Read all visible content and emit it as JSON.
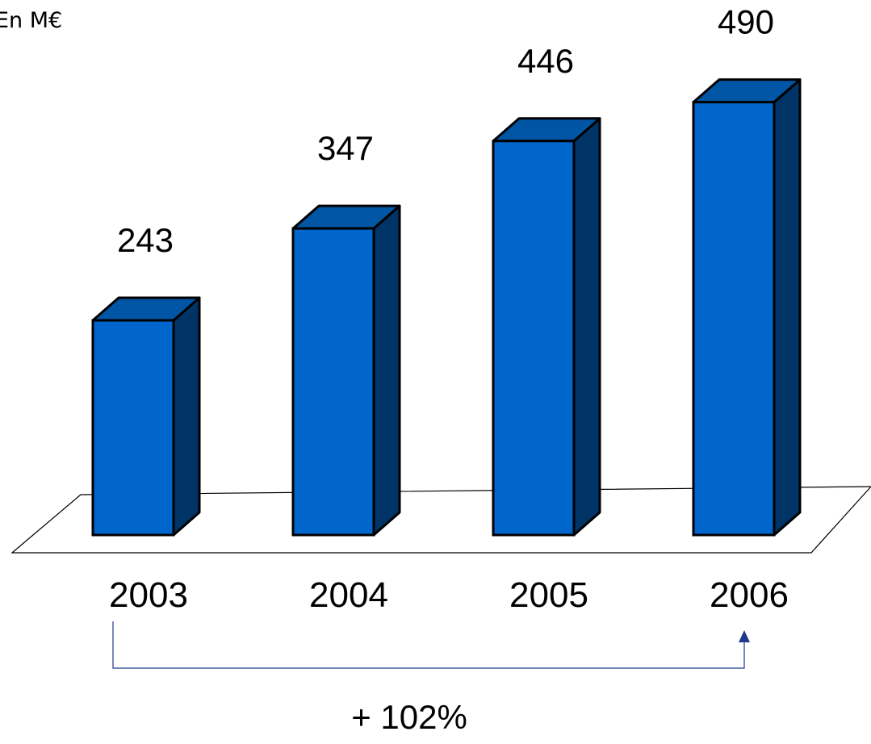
{
  "chart_data": {
    "type": "bar",
    "unit": "En M€",
    "categories": [
      "2003",
      "2004",
      "2005",
      "2006"
    ],
    "values": [
      243,
      347,
      446,
      490
    ],
    "data_labels": [
      "243",
      "347",
      "446",
      "490"
    ],
    "growth": {
      "label": "+ 102%",
      "from": "2003",
      "to": "2006"
    },
    "style": "3d-columns",
    "grid": false,
    "legend": "none"
  },
  "colors": {
    "bar_front": "#0066CC",
    "bar_top": "#0055A5",
    "bar_side": "#003366",
    "outline": "#000000",
    "arrow": "#1F3A8A",
    "floor_line": "#000000"
  }
}
